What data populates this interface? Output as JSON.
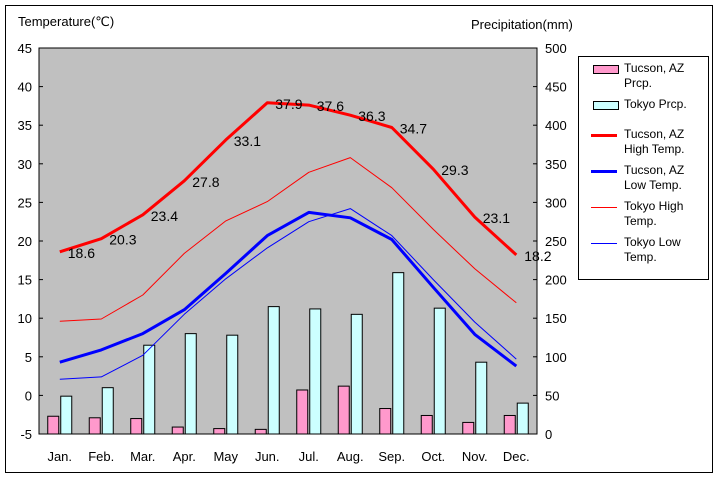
{
  "chart_data": {
    "type": "bar+line",
    "left_axis_label": "Temperature(℃)",
    "right_axis_label": "Precipitation(mm)",
    "categories": [
      "Jan.",
      "Feb.",
      "Mar.",
      "Apr.",
      "May",
      "Jun.",
      "Jul.",
      "Aug.",
      "Sep.",
      "Oct.",
      "Nov.",
      "Dec."
    ],
    "temp_axis": {
      "min": -5,
      "max": 45,
      "ticks": [
        -5,
        0,
        5,
        10,
        15,
        20,
        25,
        30,
        35,
        40,
        45
      ]
    },
    "precip_axis": {
      "min": 0,
      "max": 500,
      "ticks": [
        0,
        50,
        100,
        150,
        200,
        250,
        300,
        350,
        400,
        450,
        500
      ]
    },
    "grid": false,
    "plot_background": "#c0c0c0",
    "legend_position": "right",
    "bar_series": [
      {
        "name": "Tucson, AZ Prcp.",
        "color": "#ff99cc",
        "values": [
          23,
          21,
          20,
          9,
          7,
          6,
          57,
          62,
          33,
          24,
          15,
          24
        ]
      },
      {
        "name": "Tokyo Prcp.",
        "color": "#ccffff",
        "values": [
          49,
          60,
          115,
          130,
          128,
          165,
          162,
          155,
          209,
          163,
          93,
          40
        ]
      }
    ],
    "line_series": [
      {
        "name": "Tucson, AZ High Temp.",
        "color": "#ff0000",
        "width": 3,
        "values": [
          18.6,
          20.3,
          23.4,
          27.8,
          33.1,
          37.9,
          37.6,
          36.3,
          34.7,
          29.3,
          23.1,
          18.2
        ],
        "labels": [
          "18.6",
          "20.3",
          "23.4",
          "27.8",
          "33.1",
          "37.9",
          "37.6",
          "36.3",
          "34.7",
          "29.3",
          "23.1",
          "18.2"
        ]
      },
      {
        "name": "Tucson, AZ Low Temp.",
        "color": "#0000ff",
        "width": 3,
        "values": [
          4.3,
          5.9,
          8.0,
          11.1,
          15.8,
          20.7,
          23.7,
          23.0,
          20.2,
          14.0,
          7.9,
          3.8
        ]
      },
      {
        "name": "Tokyo High Temp.",
        "color": "#ff0000",
        "width": 1,
        "values": [
          9.6,
          9.9,
          13.0,
          18.4,
          22.6,
          25.1,
          28.9,
          30.8,
          26.9,
          21.5,
          16.4,
          12.0
        ]
      },
      {
        "name": "Tokyo Low Temp.",
        "color": "#0000ff",
        "width": 1,
        "values": [
          2.1,
          2.4,
          5.2,
          10.5,
          15.1,
          19.1,
          22.5,
          24.2,
          20.7,
          15.0,
          9.5,
          4.7
        ]
      }
    ],
    "legend": [
      {
        "series": "Tucson, AZ Prcp.",
        "lines": [
          "Tucson, AZ",
          "Prcp."
        ],
        "kind": "bar",
        "color": "#ff99cc"
      },
      {
        "series": "Tokyo Prcp.",
        "lines": [
          "Tokyo Prcp."
        ],
        "kind": "bar",
        "color": "#ccffff"
      },
      {
        "series": "Tucson, AZ High Temp.",
        "lines": [
          "Tucson, AZ",
          "High Temp."
        ],
        "kind": "line",
        "color": "#ff0000",
        "width": 3
      },
      {
        "series": "Tucson, AZ Low Temp.",
        "lines": [
          "Tucson, AZ",
          "Low Temp."
        ],
        "kind": "line",
        "color": "#0000ff",
        "width": 3
      },
      {
        "series": "Tokyo High Temp.",
        "lines": [
          "Tokyo High",
          "Temp."
        ],
        "kind": "line",
        "color": "#ff0000",
        "width": 1
      },
      {
        "series": "Tokyo Low Temp.",
        "lines": [
          "Tokyo Low",
          "Temp."
        ],
        "kind": "line",
        "color": "#0000ff",
        "width": 1
      }
    ]
  }
}
